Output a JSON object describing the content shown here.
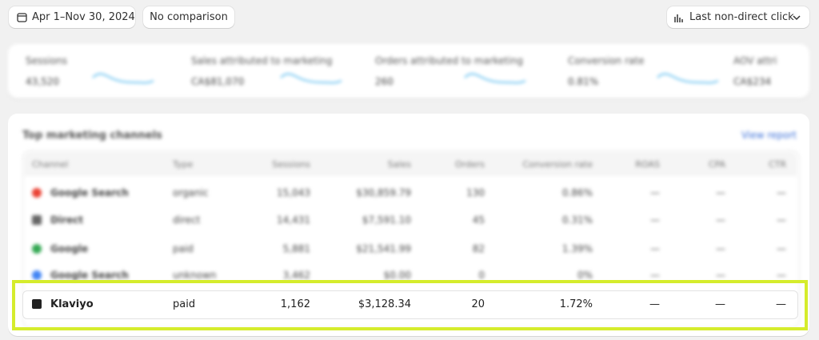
{
  "header": {
    "date_range": "Apr 1–Nov 30, 2024",
    "comparison": "No comparison",
    "attribution": "Last non-direct click"
  },
  "metrics": [
    {
      "label": "Sessions",
      "value": "43,520"
    },
    {
      "label": "Sales attributed to marketing",
      "value": "CA$81,070"
    },
    {
      "label": "Orders attributed to marketing",
      "value": "260"
    },
    {
      "label": "Conversion rate",
      "value": "0.81%"
    },
    {
      "label": "AOV attri",
      "value": "CA$234"
    }
  ],
  "table": {
    "title": "Top marketing channels",
    "link": "View report",
    "columns": [
      "Channel",
      "Type",
      "Sessions",
      "Sales",
      "Orders",
      "Conversion rate",
      "ROAS",
      "CPA",
      "CTR"
    ],
    "rows": [
      [
        "Google Search",
        "organic",
        "15,043",
        "$30,859.79",
        "130",
        "0.86%",
        "—",
        "—",
        "—"
      ],
      [
        "Direct",
        "direct",
        "14,431",
        "$7,591.10",
        "45",
        "0.31%",
        "—",
        "—",
        "—"
      ],
      [
        "Google",
        "paid",
        "5,881",
        "$21,541.99",
        "82",
        "1.39%",
        "—",
        "—",
        "—"
      ],
      [
        "Google Search",
        "unknown",
        "3,462",
        "$0.00",
        "0",
        "0%",
        "—",
        "—",
        "—"
      ],
      [
        "Klaviyo",
        "paid",
        "1,162",
        "$3,128.34",
        "20",
        "1.72%",
        "—",
        "—",
        "—"
      ]
    ]
  }
}
